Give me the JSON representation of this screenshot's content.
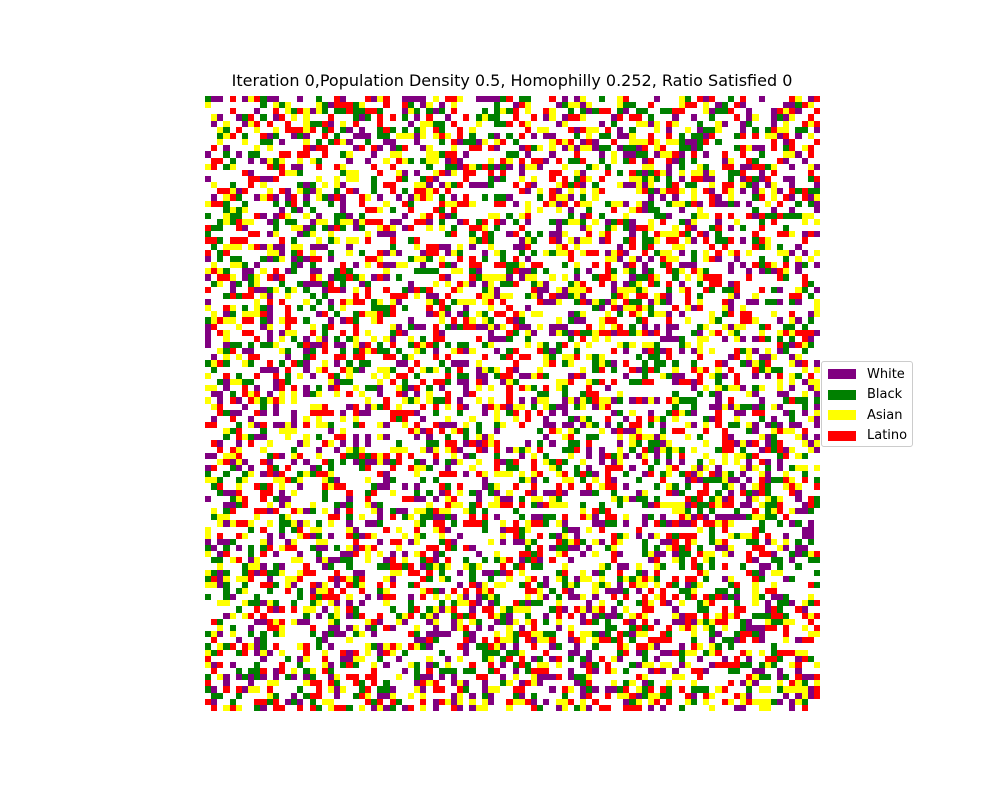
{
  "chart_data": {
    "type": "heatmap",
    "title": "Iteration 0,Population Density 0.5, Homophilly 0.252, Ratio Satisfied 0",
    "xlabel": "",
    "ylabel": "",
    "grid_size": [
      100,
      100
    ],
    "population_density": 0.5,
    "homophily": 0.252,
    "ratio_satisfied": 0,
    "iteration": 0,
    "axes_visible": false,
    "grid": false,
    "legend_placement": "center-right",
    "empty_color": "#ffffff",
    "series": [
      {
        "name": "White",
        "color": "#800080",
        "share": 0.25
      },
      {
        "name": "Black",
        "color": "#008000",
        "share": 0.25
      },
      {
        "name": "Asian",
        "color": "#ffff00",
        "share": 0.25
      },
      {
        "name": "Latino",
        "color": "#ff0000",
        "share": 0.25
      }
    ]
  }
}
